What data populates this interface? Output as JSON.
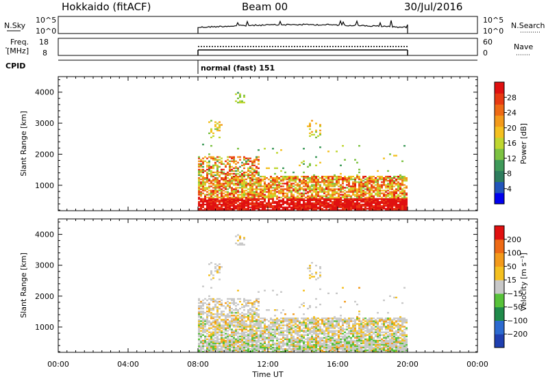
{
  "header": {
    "station": "Hokkaido (fitACF)",
    "beam": "Beam 00",
    "date": "30/Jul/2016"
  },
  "strip_panels": {
    "noise": {
      "left_label": "N.Sky",
      "right_label": "N.Search",
      "left_ticks": [
        "10^5",
        "10^0"
      ],
      "right_ticks": [
        "10^5",
        "10^0"
      ]
    },
    "freq": {
      "left_label_1": "Freq.",
      "left_label_2": "[MHz]",
      "right_label": "Nave",
      "left_ticks": [
        "18",
        "8"
      ],
      "right_ticks": [
        "60",
        "0"
      ]
    },
    "cpid": {
      "label": "CPID",
      "mode_text": "normal (fast) 151"
    }
  },
  "colorbars": {
    "power": {
      "label": "Power [dB]",
      "ticks": [
        "28",
        "24",
        "20",
        "16",
        "12",
        "8",
        "4"
      ],
      "colors": [
        "#0000ee",
        "#2255bb",
        "#2e7d5e",
        "#3f9a5a",
        "#7cc242",
        "#bfd630",
        "#f4c020",
        "#f39a1b",
        "#ee6a15",
        "#e83a12",
        "#e01010"
      ]
    },
    "velocity": {
      "label": "Velocity [m s⁻¹]",
      "ticks": [
        "200",
        "100",
        "50",
        "15",
        "−15",
        "−50",
        "−100",
        "−200"
      ],
      "colors": [
        "#1f3fb0",
        "#2c6ad0",
        "#1f8a4a",
        "#57c23a",
        "#c8c8c8",
        "#f4c020",
        "#f39a1b",
        "#ee6a15",
        "#e01010"
      ]
    }
  },
  "chart_data": [
    {
      "type": "heatmap",
      "name": "power",
      "ylabel": "Slant Range [km]",
      "yticks": [
        "4000",
        "3000",
        "2000",
        "1000"
      ],
      "ylim": [
        180,
        4500
      ],
      "xlim_hours": [
        0,
        24
      ],
      "data_coverage_hours": [
        8,
        20
      ]
    },
    {
      "type": "heatmap",
      "name": "velocity",
      "ylabel": "Slant Range [km]",
      "yticks": [
        "4000",
        "3000",
        "2000",
        "1000"
      ],
      "ylim": [
        180,
        4500
      ],
      "xlim_hours": [
        0,
        24
      ],
      "data_coverage_hours": [
        8,
        20
      ],
      "xlabel": "Time UT",
      "xticks": [
        "00:00",
        "04:00",
        "08:00",
        "12:00",
        "16:00",
        "20:00",
        "00:00"
      ]
    }
  ]
}
